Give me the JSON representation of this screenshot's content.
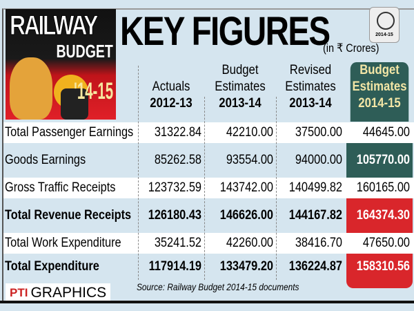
{
  "header": {
    "logo_text": [
      "RAILWAY",
      "BUDGET",
      "'14-15"
    ],
    "title": "KEY FIGURES",
    "unit": "(in ₹ Crores)",
    "seal_text": "2014-15"
  },
  "colors": {
    "highlight_teal": "#2e5d57",
    "highlight_red": "#d9262b",
    "background": "#d5e5ef",
    "header_text": "#f3e6a6"
  },
  "chart_data": {
    "type": "table",
    "title": "KEY FIGURES",
    "columns": [
      {
        "line1": "",
        "line2": "Actuals",
        "year": "2012-13"
      },
      {
        "line1": "Budget",
        "line2": "Estimates",
        "year": "2013-14"
      },
      {
        "line1": "Revised",
        "line2": "Estimates",
        "year": "2013-14"
      },
      {
        "line1": "Budget",
        "line2": "Estimates",
        "year": "2014-15"
      }
    ],
    "rows": [
      {
        "label": "Total Passenger Earnings",
        "values": [
          "31322.84",
          "42210.00",
          "37500.00",
          "44645.00"
        ],
        "bold": false,
        "highlight": "none"
      },
      {
        "label": "Goods Earnings",
        "values": [
          "85262.58",
          "93554.00",
          "94000.00",
          "105770.00"
        ],
        "bold": false,
        "highlight": "teal"
      },
      {
        "label": "Gross Traffic Receipts",
        "values": [
          "123732.59",
          "143742.00",
          "140499.82",
          "160165.00"
        ],
        "bold": false,
        "highlight": "none"
      },
      {
        "label": "Total Revenue Receipts",
        "values": [
          "126180.43",
          "146626.00",
          "144167.82",
          "164374.30"
        ],
        "bold": true,
        "highlight": "red"
      },
      {
        "label": "Total Work Expenditure",
        "values": [
          "35241.52",
          "42260.00",
          "38416.70",
          "47650.00"
        ],
        "bold": false,
        "highlight": "none"
      },
      {
        "label": "Total Expenditure",
        "values": [
          "117914.19",
          "133479.20",
          "136224.87",
          "158310.56"
        ],
        "bold": true,
        "highlight": "red"
      }
    ]
  },
  "footer": {
    "source": "Source: Railway Budget 2014-15 documents",
    "brand_mark": "PTI",
    "brand": "GRAPHICS"
  }
}
